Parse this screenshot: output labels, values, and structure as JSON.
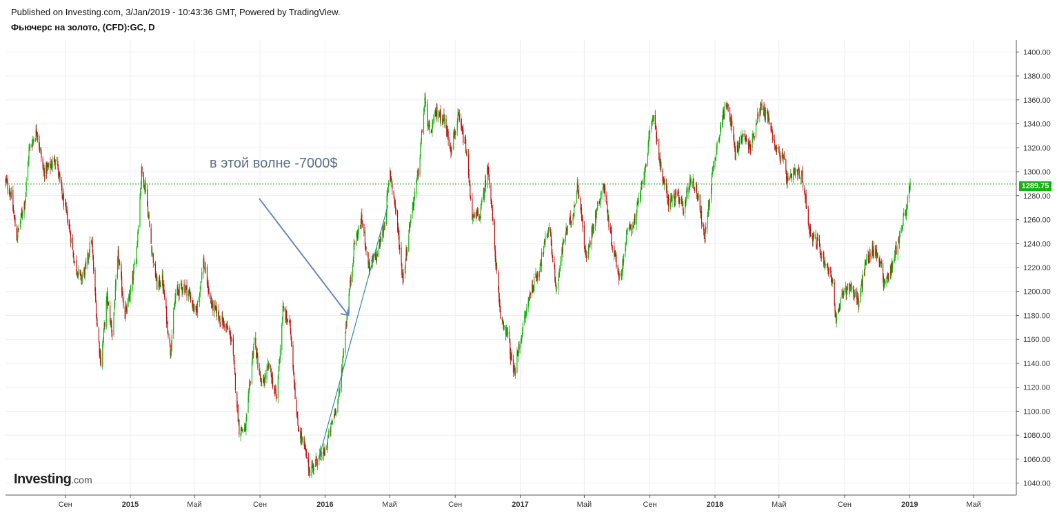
{
  "header": {
    "published": "Published on Investing.com, 3/Jan/2019 - 10:43:36 GMT, Powered by TradingView.",
    "title": "Фьючерс на золото, (CFD):GC, D"
  },
  "logo": {
    "brand": "Investing",
    "suffix": ".com"
  },
  "annotation": {
    "text": "в этой волне -7000$"
  },
  "colors": {
    "up": "#13b20b",
    "down": "#c10f0f",
    "grid": "#eeeeee",
    "current_price_line": "#13b20b",
    "arrow": "#6a86c4",
    "trendline": "#2f8b9a"
  },
  "chart_data": {
    "type": "candlestick",
    "title": "Фьючерс на золото, (CFD):GC, D",
    "xlabel": "",
    "ylabel": "",
    "ylim": [
      1030,
      1410
    ],
    "yticks": [
      1040,
      1060,
      1080,
      1100,
      1120,
      1140,
      1160,
      1180,
      1200,
      1220,
      1240,
      1260,
      1280,
      1300,
      1320,
      1340,
      1360,
      1380,
      1400
    ],
    "xlim": [
      "2014-05-12",
      "2019-07-20"
    ],
    "xticks": [
      {
        "date": "2014-09-01",
        "label": "Сен"
      },
      {
        "date": "2015-01-01",
        "label": "2015"
      },
      {
        "date": "2015-05-01",
        "label": "Май"
      },
      {
        "date": "2015-09-01",
        "label": "Сен"
      },
      {
        "date": "2016-01-01",
        "label": "2016"
      },
      {
        "date": "2016-05-01",
        "label": "Май"
      },
      {
        "date": "2016-09-01",
        "label": "Сен"
      },
      {
        "date": "2017-01-01",
        "label": "2017"
      },
      {
        "date": "2017-05-01",
        "label": "Май"
      },
      {
        "date": "2017-09-01",
        "label": "Сен"
      },
      {
        "date": "2018-01-01",
        "label": "2018"
      },
      {
        "date": "2018-05-01",
        "label": "Май"
      },
      {
        "date": "2018-09-01",
        "label": "Сен"
      },
      {
        "date": "2019-01-01",
        "label": "2019"
      },
      {
        "date": "2019-05-01",
        "label": "Май"
      }
    ],
    "current_price": 1289.75,
    "current_price_label": "1289.75",
    "price_path": [
      [
        "2014-05-12",
        1292
      ],
      [
        "2014-05-22",
        1282
      ],
      [
        "2014-06-02",
        1245
      ],
      [
        "2014-06-18",
        1278
      ],
      [
        "2014-06-25",
        1318
      ],
      [
        "2014-07-10",
        1335
      ],
      [
        "2014-07-22",
        1300
      ],
      [
        "2014-08-05",
        1305
      ],
      [
        "2014-08-14",
        1312
      ],
      [
        "2014-08-25",
        1283
      ],
      [
        "2014-09-08",
        1255
      ],
      [
        "2014-09-18",
        1225
      ],
      [
        "2014-09-30",
        1210
      ],
      [
        "2014-10-10",
        1220
      ],
      [
        "2014-10-20",
        1245
      ],
      [
        "2014-10-31",
        1170
      ],
      [
        "2014-11-07",
        1140
      ],
      [
        "2014-11-18",
        1195
      ],
      [
        "2014-11-28",
        1165
      ],
      [
        "2014-12-09",
        1230
      ],
      [
        "2014-12-22",
        1180
      ],
      [
        "2014-12-31",
        1195
      ],
      [
        "2015-01-12",
        1230
      ],
      [
        "2015-01-22",
        1300
      ],
      [
        "2015-01-30",
        1285
      ],
      [
        "2015-02-09",
        1240
      ],
      [
        "2015-02-20",
        1205
      ],
      [
        "2015-03-02",
        1210
      ],
      [
        "2015-03-17",
        1150
      ],
      [
        "2015-03-27",
        1198
      ],
      [
        "2015-04-10",
        1205
      ],
      [
        "2015-04-20",
        1200
      ],
      [
        "2015-05-04",
        1180
      ],
      [
        "2015-05-18",
        1225
      ],
      [
        "2015-06-01",
        1190
      ],
      [
        "2015-06-15",
        1180
      ],
      [
        "2015-06-30",
        1170
      ],
      [
        "2015-07-10",
        1160
      ],
      [
        "2015-07-24",
        1085
      ],
      [
        "2015-08-05",
        1085
      ],
      [
        "2015-08-21",
        1160
      ],
      [
        "2015-09-04",
        1120
      ],
      [
        "2015-09-18",
        1138
      ],
      [
        "2015-10-02",
        1110
      ],
      [
        "2015-10-14",
        1185
      ],
      [
        "2015-10-28",
        1170
      ],
      [
        "2015-11-10",
        1090
      ],
      [
        "2015-11-24",
        1068
      ],
      [
        "2015-12-03",
        1050
      ],
      [
        "2015-12-17",
        1060
      ],
      [
        "2015-12-31",
        1065
      ],
      [
        "2016-01-14",
        1090
      ],
      [
        "2016-01-28",
        1115
      ],
      [
        "2016-02-11",
        1180
      ],
      [
        "2016-02-25",
        1240
      ],
      [
        "2016-03-10",
        1260
      ],
      [
        "2016-03-24",
        1220
      ],
      [
        "2016-04-07",
        1230
      ],
      [
        "2016-04-21",
        1255
      ],
      [
        "2016-05-02",
        1300
      ],
      [
        "2016-05-12",
        1270
      ],
      [
        "2016-05-26",
        1210
      ],
      [
        "2016-06-09",
        1260
      ],
      [
        "2016-06-24",
        1300
      ],
      [
        "2016-07-06",
        1360
      ],
      [
        "2016-07-15",
        1330
      ],
      [
        "2016-07-28",
        1350
      ],
      [
        "2016-08-10",
        1345
      ],
      [
        "2016-08-24",
        1320
      ],
      [
        "2016-09-07",
        1345
      ],
      [
        "2016-09-21",
        1320
      ],
      [
        "2016-10-04",
        1260
      ],
      [
        "2016-10-18",
        1265
      ],
      [
        "2016-11-02",
        1305
      ],
      [
        "2016-11-10",
        1260
      ],
      [
        "2016-11-24",
        1180
      ],
      [
        "2016-12-08",
        1165
      ],
      [
        "2016-12-20",
        1130
      ],
      [
        "2017-01-06",
        1170
      ],
      [
        "2017-01-20",
        1200
      ],
      [
        "2017-02-03",
        1215
      ],
      [
        "2017-02-24",
        1255
      ],
      [
        "2017-03-10",
        1200
      ],
      [
        "2017-03-24",
        1245
      ],
      [
        "2017-04-10",
        1265
      ],
      [
        "2017-04-19",
        1290
      ],
      [
        "2017-05-05",
        1225
      ],
      [
        "2017-05-17",
        1255
      ],
      [
        "2017-06-06",
        1290
      ],
      [
        "2017-06-20",
        1245
      ],
      [
        "2017-07-07",
        1210
      ],
      [
        "2017-07-21",
        1250
      ],
      [
        "2017-08-04",
        1260
      ],
      [
        "2017-08-18",
        1290
      ],
      [
        "2017-09-08",
        1350
      ],
      [
        "2017-09-22",
        1300
      ],
      [
        "2017-10-06",
        1275
      ],
      [
        "2017-10-20",
        1280
      ],
      [
        "2017-11-03",
        1270
      ],
      [
        "2017-11-17",
        1295
      ],
      [
        "2017-12-01",
        1280
      ],
      [
        "2017-12-12",
        1242
      ],
      [
        "2017-12-29",
        1305
      ],
      [
        "2018-01-12",
        1340
      ],
      [
        "2018-01-25",
        1360
      ],
      [
        "2018-02-08",
        1315
      ],
      [
        "2018-02-22",
        1330
      ],
      [
        "2018-03-09",
        1320
      ],
      [
        "2018-03-26",
        1355
      ],
      [
        "2018-04-11",
        1345
      ],
      [
        "2018-04-25",
        1320
      ],
      [
        "2018-05-09",
        1310
      ],
      [
        "2018-05-18",
        1290
      ],
      [
        "2018-06-01",
        1300
      ],
      [
        "2018-06-14",
        1295
      ],
      [
        "2018-06-28",
        1250
      ],
      [
        "2018-07-12",
        1240
      ],
      [
        "2018-07-26",
        1225
      ],
      [
        "2018-08-09",
        1210
      ],
      [
        "2018-08-16",
        1175
      ],
      [
        "2018-08-30",
        1200
      ],
      [
        "2018-09-13",
        1205
      ],
      [
        "2018-09-27",
        1190
      ],
      [
        "2018-10-11",
        1225
      ],
      [
        "2018-10-25",
        1235
      ],
      [
        "2018-11-08",
        1225
      ],
      [
        "2018-11-14",
        1205
      ],
      [
        "2018-11-28",
        1220
      ],
      [
        "2018-12-12",
        1245
      ],
      [
        "2018-12-26",
        1270
      ],
      [
        "2019-01-02",
        1289.75
      ]
    ]
  }
}
